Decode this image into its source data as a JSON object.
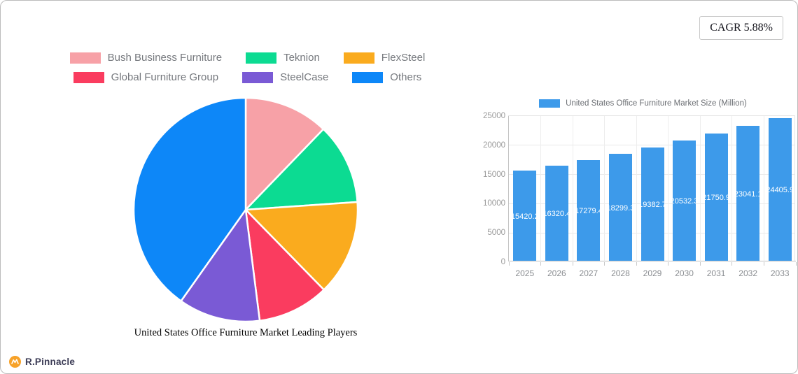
{
  "card": {
    "cagr_label": "CAGR 5.88%"
  },
  "brand": {
    "name": "R.Pinnacle",
    "icon_color": "#F7A229"
  },
  "chart_data": [
    {
      "type": "pie",
      "title": "United States Office Furniture Market Leading Players",
      "legend_position": "top",
      "slices": [
        {
          "label": "Bush Business Furniture",
          "percent": 12.2,
          "color": "#F7A1A7"
        },
        {
          "label": "Teknion",
          "percent": 11.7,
          "color": "#0CDB92"
        },
        {
          "label": "FlexSteel",
          "percent": 13.8,
          "color": "#FAAB1E"
        },
        {
          "label": "Global Furniture Group",
          "percent": 10.3,
          "color": "#FA3C5F"
        },
        {
          "label": "SteelCase",
          "percent": 11.8,
          "color": "#7A5AD5"
        },
        {
          "label": "Others",
          "percent": 40.2,
          "color": "#0D87F8"
        }
      ]
    },
    {
      "type": "bar",
      "legend_label": "United States Office Furniture Market Size (Million)",
      "bar_color": "#3D9AEA",
      "categories": [
        "2025",
        "2026",
        "2027",
        "2028",
        "2029",
        "2030",
        "2031",
        "2032",
        "2033"
      ],
      "values": [
        15420.2,
        16320.4,
        17279.4,
        18299.3,
        19382.7,
        20532.3,
        21750.9,
        23041.1,
        24405.9
      ],
      "value_labels": [
        "15420.2",
        "16320.4",
        "17279.4",
        "18299.3",
        "19382.7",
        "20532.3",
        "21750.9",
        "23041.1",
        "24405.9"
      ],
      "ylim": [
        0,
        25000
      ],
      "y_ticks": [
        0,
        5000,
        10000,
        15000,
        20000,
        25000
      ],
      "grid": true
    }
  ]
}
